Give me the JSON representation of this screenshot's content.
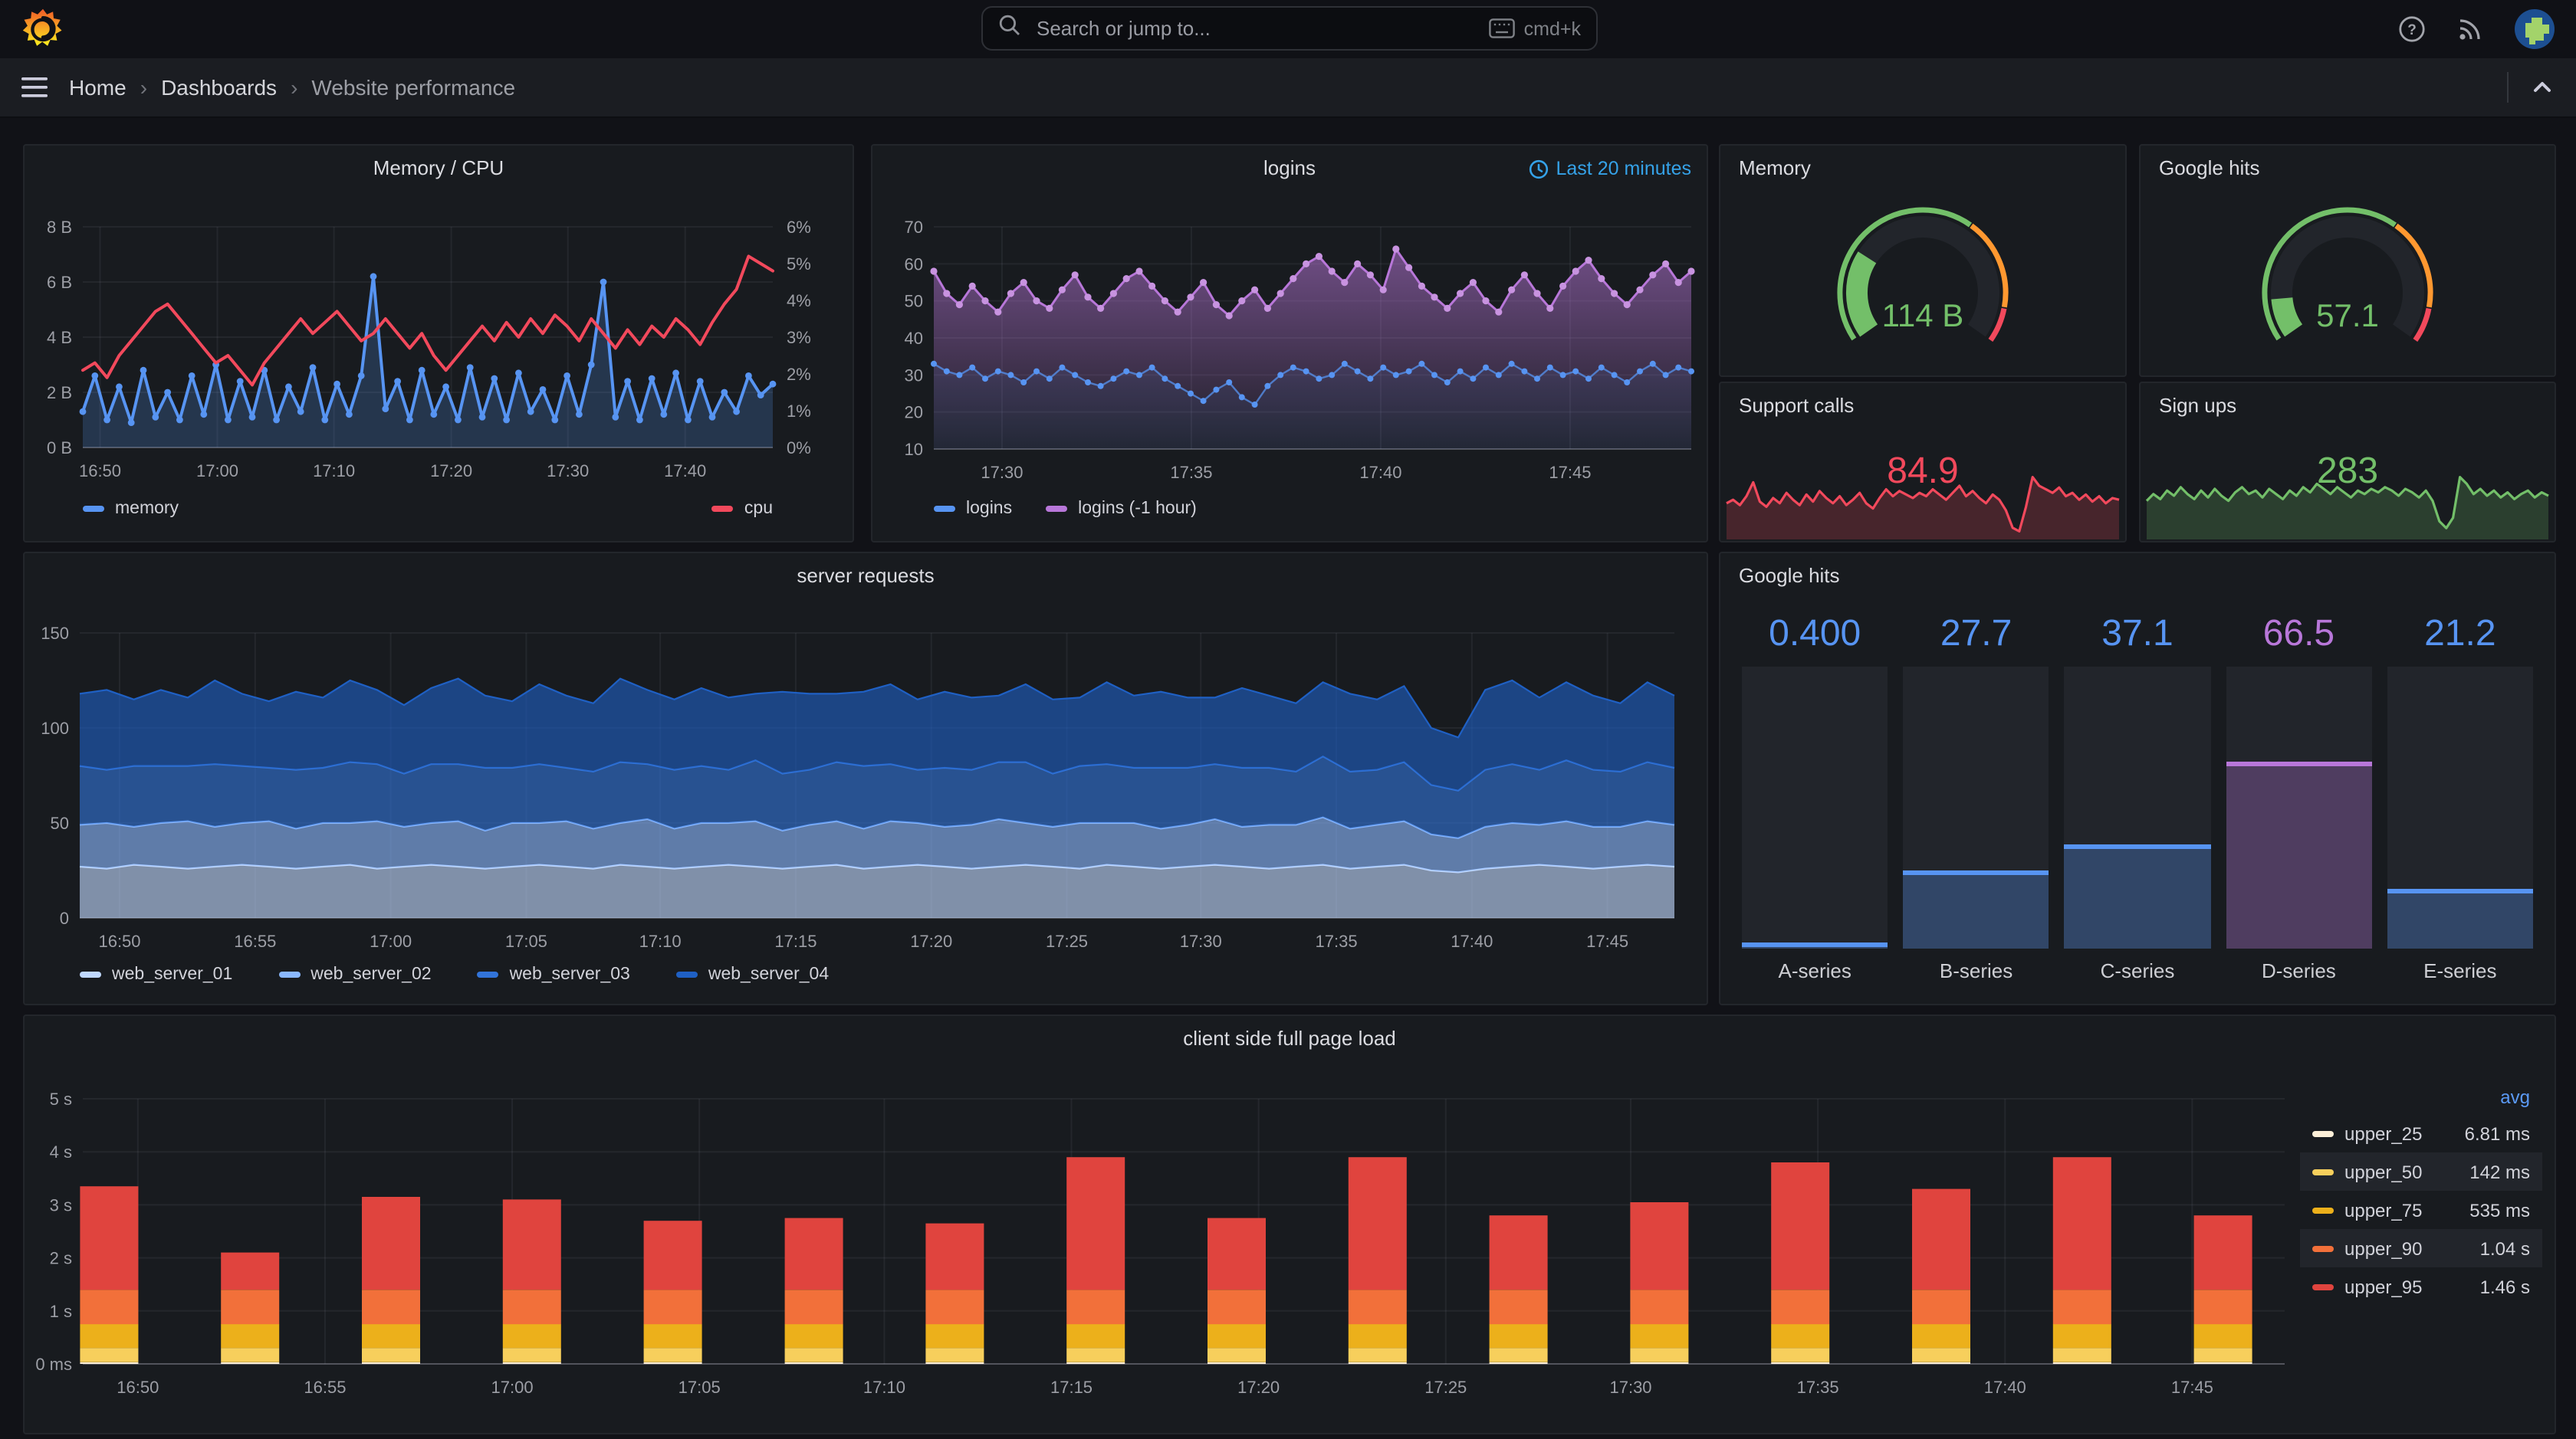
{
  "topbar": {
    "search_placeholder": "Search or jump to...",
    "shortcut_label": "cmd+k",
    "icons": [
      "grafana-logo",
      "search-icon",
      "keyboard-icon",
      "help-icon",
      "rss-icon",
      "avatar"
    ]
  },
  "breadcrumb": {
    "home": "Home",
    "dashboards": "Dashboards",
    "current": "Website performance"
  },
  "panels": {
    "memory_cpu": {
      "title": "Memory / CPU"
    },
    "logins": {
      "title": "logins",
      "time_range": "Last 20 minutes"
    },
    "memory_gauge": {
      "title": "Memory",
      "value": "114 B"
    },
    "google_hits_gauge": {
      "title": "Google hits",
      "value": "57.1"
    },
    "support_calls": {
      "title": "Support calls",
      "value": "84.9"
    },
    "sign_ups": {
      "title": "Sign ups",
      "value": "283"
    },
    "server_requests": {
      "title": "server requests"
    },
    "google_hits_bars": {
      "title": "Google hits"
    },
    "client_load": {
      "title": "client side full page load"
    }
  },
  "chart_data": [
    {
      "id": "memory_cpu",
      "type": "line",
      "title": "Memory / CPU",
      "left_axis": {
        "min": 0,
        "max": 8,
        "ticks": [
          "0 B",
          "2 B",
          "4 B",
          "6 B",
          "8 B"
        ]
      },
      "right_axis": {
        "min": 0,
        "max": 6,
        "ticks": [
          "0%",
          "1%",
          "2%",
          "3%",
          "4%",
          "5%",
          "6%"
        ]
      },
      "x_ticks": [
        {
          "f": 0.025,
          "l": "16:50"
        },
        {
          "f": 0.195,
          "l": "17:00"
        },
        {
          "f": 0.364,
          "l": "17:10"
        },
        {
          "f": 0.534,
          "l": "17:20"
        },
        {
          "f": 0.703,
          "l": "17:30"
        },
        {
          "f": 0.873,
          "l": "17:40"
        }
      ],
      "series": [
        {
          "name": "memory",
          "color": "#5794F2",
          "axis": "left",
          "values": [
            1.3,
            2.6,
            1.0,
            2.2,
            0.9,
            2.8,
            1.1,
            2.0,
            1.0,
            2.6,
            1.2,
            3.0,
            1.0,
            2.4,
            1.1,
            2.8,
            1.0,
            2.2,
            1.3,
            2.9,
            1.0,
            2.3,
            1.2,
            2.6,
            6.2,
            1.4,
            2.4,
            1.0,
            2.8,
            1.2,
            2.2,
            1.0,
            2.9,
            1.1,
            2.5,
            1.0,
            2.7,
            1.3,
            2.1,
            1.0,
            2.6,
            1.2,
            3.0,
            6.0,
            1.1,
            2.4,
            1.0,
            2.5,
            1.2,
            2.7,
            1.0,
            2.4,
            1.1,
            2.0,
            1.3,
            2.6,
            1.9,
            2.3
          ]
        },
        {
          "name": "cpu",
          "color": "#F2495C",
          "axis": "right",
          "values": [
            2.1,
            2.3,
            1.9,
            2.5,
            2.9,
            3.3,
            3.7,
            3.9,
            3.5,
            3.1,
            2.7,
            2.3,
            2.5,
            2.1,
            1.7,
            2.3,
            2.7,
            3.1,
            3.5,
            3.1,
            3.4,
            3.7,
            3.3,
            2.9,
            3.1,
            3.5,
            3.1,
            2.7,
            3.1,
            2.5,
            2.1,
            2.5,
            2.9,
            3.3,
            2.9,
            3.4,
            3.0,
            3.5,
            3.1,
            3.6,
            3.3,
            2.9,
            3.5,
            3.1,
            2.7,
            3.2,
            2.8,
            3.3,
            3.0,
            3.5,
            3.2,
            2.8,
            3.4,
            3.9,
            4.3,
            5.2,
            5.0,
            4.8
          ]
        }
      ]
    },
    {
      "id": "logins",
      "type": "line",
      "title": "logins",
      "time_range": "Last 20 minutes",
      "ylim": [
        10,
        70
      ],
      "y_ticks": [
        "10",
        "20",
        "30",
        "40",
        "50",
        "60",
        "70"
      ],
      "x_ticks": [
        {
          "f": 0.09,
          "l": "17:30"
        },
        {
          "f": 0.34,
          "l": "17:35"
        },
        {
          "f": 0.59,
          "l": "17:40"
        },
        {
          "f": 0.84,
          "l": "17:45"
        }
      ],
      "series": [
        {
          "name": "logins",
          "color": "#5794F2",
          "values": [
            33,
            31,
            30,
            32,
            29,
            31,
            30,
            28,
            31,
            29,
            32,
            30,
            28,
            27,
            29,
            31,
            30,
            32,
            29,
            27,
            25,
            23,
            26,
            28,
            24,
            22,
            27,
            30,
            32,
            31,
            29,
            30,
            33,
            31,
            29,
            32,
            30,
            31,
            33,
            30,
            28,
            31,
            29,
            32,
            30,
            33,
            31,
            29,
            32,
            30,
            31,
            29,
            32,
            30,
            28,
            31,
            33,
            30,
            32,
            31
          ]
        },
        {
          "name": "logins (-1 hour)",
          "color": "#B877D9",
          "values": [
            58,
            52,
            49,
            54,
            50,
            47,
            52,
            55,
            50,
            48,
            53,
            57,
            51,
            48,
            52,
            56,
            58,
            54,
            50,
            47,
            51,
            55,
            49,
            46,
            50,
            53,
            48,
            52,
            56,
            60,
            62,
            58,
            55,
            60,
            57,
            53,
            64,
            59,
            54,
            51,
            48,
            52,
            55,
            50,
            47,
            53,
            57,
            52,
            48,
            54,
            58,
            61,
            56,
            52,
            49,
            53,
            57,
            60,
            55,
            58
          ]
        }
      ]
    },
    {
      "id": "memory_gauge",
      "type": "gauge",
      "title": "Memory",
      "value": "114 B",
      "fraction": 0.27,
      "color": "#73BF69",
      "thresholds": [
        {
          "to": 0.64,
          "color": "#73BF69"
        },
        {
          "to": 0.9,
          "color": "#FF9830"
        },
        {
          "to": 1,
          "color": "#F2495C"
        }
      ]
    },
    {
      "id": "google_hits_gauge",
      "type": "gauge",
      "title": "Google hits",
      "value": "57.1",
      "fraction": 0.12,
      "color": "#73BF69",
      "thresholds": [
        {
          "to": 0.64,
          "color": "#73BF69"
        },
        {
          "to": 0.9,
          "color": "#FF9830"
        },
        {
          "to": 1,
          "color": "#F2495C"
        }
      ]
    },
    {
      "id": "support_calls",
      "type": "sparkline",
      "title": "Support calls",
      "value": "84.9",
      "color": "#F2495C",
      "values": [
        18,
        20,
        17,
        22,
        30,
        19,
        16,
        21,
        18,
        24,
        20,
        17,
        23,
        19,
        25,
        21,
        18,
        22,
        17,
        20,
        24,
        18,
        15,
        21,
        26,
        22,
        25,
        23,
        21,
        24,
        22,
        26,
        23,
        20,
        24,
        28,
        22,
        25,
        21,
        18,
        23,
        20,
        14,
        4,
        2,
        16,
        33,
        28,
        26,
        24,
        27,
        22,
        24,
        20,
        23,
        19,
        22,
        18,
        21,
        20
      ]
    },
    {
      "id": "sign_ups",
      "type": "sparkline",
      "title": "Sign ups",
      "value": "283",
      "color": "#73BF69",
      "values": [
        20,
        24,
        21,
        26,
        23,
        28,
        24,
        21,
        26,
        22,
        27,
        23,
        20,
        25,
        28,
        24,
        26,
        22,
        27,
        24,
        21,
        26,
        23,
        28,
        25,
        30,
        27,
        24,
        28,
        25,
        22,
        26,
        24,
        27,
        25,
        28,
        26,
        23,
        27,
        25,
        22,
        26,
        20,
        8,
        4,
        10,
        34,
        30,
        24,
        27,
        23,
        26,
        22,
        25,
        21,
        24,
        26,
        22,
        25,
        23
      ]
    },
    {
      "id": "server_requests",
      "type": "stacked_area",
      "title": "server requests",
      "ylim": [
        0,
        150
      ],
      "y_ticks": [
        "0",
        "50",
        "100",
        "150"
      ],
      "x_ticks": [
        {
          "f": 0.025,
          "l": "16:50"
        },
        {
          "f": 0.11,
          "l": "16:55"
        },
        {
          "f": 0.195,
          "l": "17:00"
        },
        {
          "f": 0.28,
          "l": "17:05"
        },
        {
          "f": 0.364,
          "l": "17:10"
        },
        {
          "f": 0.449,
          "l": "17:15"
        },
        {
          "f": 0.534,
          "l": "17:20"
        },
        {
          "f": 0.619,
          "l": "17:25"
        },
        {
          "f": 0.703,
          "l": "17:30"
        },
        {
          "f": 0.788,
          "l": "17:35"
        },
        {
          "f": 0.873,
          "l": "17:40"
        },
        {
          "f": 0.958,
          "l": "17:45"
        }
      ],
      "series": [
        {
          "name": "web_server_01",
          "color": "#C0D8FF",
          "values": [
            27,
            26,
            28,
            27,
            26,
            27,
            28,
            27,
            26,
            27,
            28,
            26,
            27,
            28,
            27,
            26,
            27,
            28,
            27,
            26,
            28,
            27,
            26,
            27,
            28,
            27,
            26,
            27,
            28,
            26,
            27,
            28,
            27,
            26,
            27,
            28,
            27,
            26,
            28,
            27,
            26,
            27,
            28,
            27,
            26,
            27,
            28,
            26,
            27,
            28,
            25,
            24,
            26,
            27,
            28,
            27,
            26,
            27,
            28,
            27
          ]
        },
        {
          "name": "web_server_02",
          "color": "#8AB8FF",
          "values": [
            22,
            24,
            20,
            23,
            25,
            21,
            22,
            24,
            21,
            23,
            22,
            25,
            21,
            22,
            24,
            20,
            23,
            22,
            24,
            21,
            22,
            25,
            21,
            23,
            22,
            24,
            20,
            22,
            23,
            21,
            24,
            22,
            21,
            23,
            25,
            22,
            21,
            24,
            22,
            23,
            21,
            22,
            24,
            21,
            23,
            22,
            25,
            21,
            22,
            23,
            19,
            18,
            22,
            23,
            21,
            24,
            22,
            21,
            23,
            22
          ]
        },
        {
          "name": "web_server_03",
          "color": "#3274D9",
          "values": [
            31,
            28,
            32,
            30,
            29,
            33,
            30,
            28,
            31,
            29,
            32,
            30,
            28,
            31,
            30,
            33,
            29,
            31,
            28,
            30,
            32,
            29,
            31,
            30,
            28,
            32,
            30,
            29,
            31,
            33,
            30,
            28,
            31,
            29,
            30,
            32,
            28,
            30,
            31,
            29,
            32,
            30,
            29,
            31,
            30,
            28,
            32,
            30,
            29,
            31,
            26,
            25,
            30,
            31,
            29,
            32,
            30,
            29,
            31,
            30
          ]
        },
        {
          "name": "web_server_04",
          "color": "#1F60C4",
          "values": [
            38,
            42,
            35,
            40,
            36,
            44,
            38,
            35,
            41,
            37,
            43,
            39,
            36,
            40,
            45,
            38,
            35,
            42,
            38,
            36,
            44,
            39,
            37,
            41,
            38,
            35,
            43,
            40,
            36,
            39,
            42,
            37,
            40,
            38,
            35,
            41,
            39,
            36,
            43,
            38,
            40,
            37,
            35,
            42,
            38,
            36,
            39,
            41,
            37,
            40,
            30,
            28,
            42,
            44,
            38,
            41,
            39,
            36,
            42,
            38
          ]
        }
      ]
    },
    {
      "id": "google_hits_bars",
      "type": "bar_gauge",
      "title": "Google hits",
      "max": 100,
      "values": [
        0.4,
        27.7,
        37.1,
        66.5,
        21.2
      ],
      "display": [
        "0.400",
        "27.7",
        "37.1",
        "66.5",
        "21.2"
      ],
      "labels": [
        "A-series",
        "B-series",
        "C-series",
        "D-series",
        "E-series"
      ],
      "colors": [
        "#5794F2",
        "#5794F2",
        "#5794F2",
        "#B877D9",
        "#5794F2"
      ]
    },
    {
      "id": "client_load",
      "type": "stacked_bar",
      "title": "client side full page load",
      "ylim": [
        0,
        5
      ],
      "y_ticks": [
        "0 ms",
        "1 s",
        "2 s",
        "3 s",
        "4 s",
        "5 s"
      ],
      "legend_header": "avg",
      "x_ticks": [
        {
          "f": 0.025,
          "l": "16:50"
        },
        {
          "f": 0.11,
          "l": "16:55"
        },
        {
          "f": 0.195,
          "l": "17:00"
        },
        {
          "f": 0.28,
          "l": "17:05"
        },
        {
          "f": 0.364,
          "l": "17:10"
        },
        {
          "f": 0.449,
          "l": "17:15"
        },
        {
          "f": 0.534,
          "l": "17:20"
        },
        {
          "f": 0.619,
          "l": "17:25"
        },
        {
          "f": 0.703,
          "l": "17:30"
        },
        {
          "f": 0.788,
          "l": "17:35"
        },
        {
          "f": 0.873,
          "l": "17:40"
        },
        {
          "f": 0.958,
          "l": "17:45"
        }
      ],
      "bar_centers": [
        0.012,
        0.076,
        0.14,
        0.204,
        0.268,
        0.332,
        0.396,
        0.46,
        0.524,
        0.588,
        0.652,
        0.716,
        0.78,
        0.844,
        0.908,
        0.972
      ],
      "series": [
        {
          "name": "upper_25",
          "color": "#FCEFD8",
          "avg": "6.81 ms",
          "values": [
            0.03,
            0.03,
            0.03,
            0.03,
            0.03,
            0.03,
            0.03,
            0.03,
            0.03,
            0.03,
            0.03,
            0.03,
            0.03,
            0.03,
            0.03,
            0.03
          ]
        },
        {
          "name": "upper_50",
          "color": "#F7CF5C",
          "avg": "142 ms",
          "values": [
            0.27,
            0.27,
            0.27,
            0.27,
            0.27,
            0.27,
            0.27,
            0.27,
            0.27,
            0.27,
            0.27,
            0.27,
            0.27,
            0.27,
            0.27,
            0.27
          ]
        },
        {
          "name": "upper_75",
          "color": "#ECB01B",
          "avg": "535 ms",
          "values": [
            0.45,
            0.45,
            0.45,
            0.45,
            0.45,
            0.45,
            0.45,
            0.45,
            0.45,
            0.45,
            0.45,
            0.45,
            0.45,
            0.45,
            0.45,
            0.45
          ]
        },
        {
          "name": "upper_90",
          "color": "#F2703A",
          "avg": "1.04 s",
          "values": [
            0.65,
            0.65,
            0.65,
            0.65,
            0.65,
            0.65,
            0.65,
            0.65,
            0.65,
            0.65,
            0.65,
            0.65,
            0.65,
            0.65,
            0.65,
            0.65
          ]
        },
        {
          "name": "upper_95",
          "color": "#E0443E",
          "avg": "1.46 s",
          "values": [
            1.95,
            0.7,
            1.75,
            1.7,
            1.3,
            1.35,
            1.25,
            2.5,
            1.35,
            2.5,
            1.4,
            1.65,
            2.4,
            1.9,
            2.5,
            1.4
          ]
        }
      ]
    }
  ]
}
